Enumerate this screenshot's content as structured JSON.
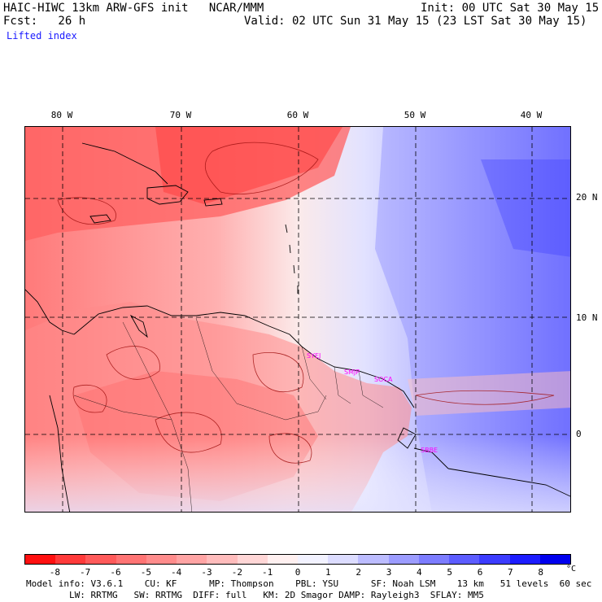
{
  "header": {
    "title": "HAIC-HIWC 13km ARW-GFS init   NCAR/MMM",
    "init": "Init: 00 UTC Sat 30 May 15",
    "forecast": "Fcst:   26 h",
    "valid": "Valid: 02 UTC Sun 31 May 15 (23 LST Sat 30 May 15)",
    "field": "Lifted index"
  },
  "map": {
    "lon_labels": [
      "80 W",
      "70 W",
      "60 W",
      "50 W",
      "40 W"
    ],
    "lat_labels": [
      "20 N",
      "10 N",
      "0"
    ],
    "stations": [
      "SYEJ",
      "SMJP",
      "SOCA",
      "SBBE"
    ]
  },
  "colorbar": {
    "labels": [
      "-8",
      "-7",
      "-6",
      "-5",
      "-4",
      "-3",
      "-2",
      "-1",
      "0",
      "1",
      "2",
      "3",
      "4",
      "5",
      "6",
      "7",
      "8"
    ],
    "unit": "°C",
    "colors": [
      "#ff1010",
      "#ff3a3a",
      "#ff5a5a",
      "#ff7474",
      "#ff8c8c",
      "#ffa4a4",
      "#ffbcbc",
      "#ffd6d6",
      "#fff0f0",
      "#f2f2ff",
      "#dcdcff",
      "#bcbcff",
      "#9c9cff",
      "#7c7cff",
      "#5c5cff",
      "#3c3cff",
      "#1c1cff",
      "#0000ee"
    ]
  },
  "footer": {
    "line1": "Model info: V3.6.1    CU: KF      MP: Thompson    PBL: YSU      SF: Noah LSM    13 km   51 levels  60 sec",
    "line2": "        LW: RRTMG   SW: RRTMG  DIFF: full   KM: 2D Smagor DAMP: Rayleigh3  SFLAY: MM5"
  }
}
